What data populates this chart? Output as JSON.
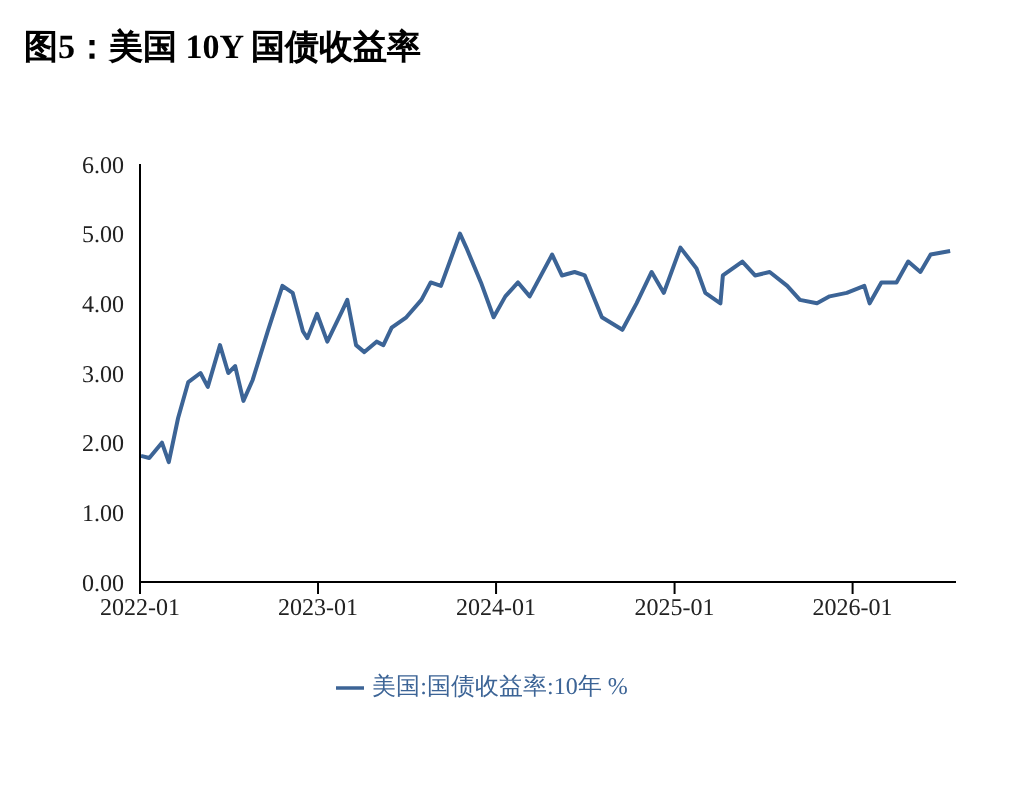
{
  "chart_data": {
    "type": "line",
    "title": "图5：美国 10Y 国债收益率",
    "x": [
      "2022-01-03",
      "2022-01-20",
      "2022-02-15",
      "2022-03-01",
      "2022-03-20",
      "2022-04-10",
      "2022-05-05",
      "2022-05-20",
      "2022-06-14",
      "2022-07-01",
      "2022-07-15",
      "2022-08-01",
      "2022-08-20",
      "2022-09-20",
      "2022-10-20",
      "2022-11-10",
      "2022-12-01",
      "2022-12-10",
      "2022-12-30",
      "2023-01-20",
      "2023-02-20",
      "2023-03-02",
      "2023-03-20",
      "2023-04-06",
      "2023-05-01",
      "2023-05-15",
      "2023-06-01",
      "2023-07-01",
      "2023-08-01",
      "2023-08-20",
      "2023-09-10",
      "2023-10-19",
      "2023-11-01",
      "2023-12-01",
      "2023-12-27",
      "2024-01-20",
      "2024-02-15",
      "2024-03-10",
      "2024-04-25",
      "2024-05-15",
      "2024-06-10",
      "2024-07-01",
      "2024-08-05",
      "2024-09-16",
      "2024-10-15",
      "2024-11-15",
      "2024-12-10",
      "2025-01-13",
      "2025-02-15",
      "2025-03-05",
      "2025-04-05",
      "2025-04-10",
      "2025-05-20",
      "2025-06-15",
      "2025-07-15",
      "2025-08-20",
      "2025-09-15",
      "2025-10-20",
      "2025-11-15",
      "2025-12-20",
      "2026-01-25",
      "2026-02-05",
      "2026-03-01",
      "2026-04-01",
      "2026-04-25",
      "2026-05-20",
      "2026-06-10",
      "2026-07-20"
    ],
    "series": [
      {
        "name": "美国:国债收益率:10年 %",
        "color": "#3c6496",
        "values": [
          1.81,
          1.78,
          2.0,
          1.72,
          2.35,
          2.87,
          3.0,
          2.8,
          3.4,
          3.0,
          3.1,
          2.6,
          2.9,
          3.6,
          4.25,
          4.15,
          3.6,
          3.5,
          3.85,
          3.45,
          3.9,
          4.05,
          3.4,
          3.3,
          3.45,
          3.4,
          3.65,
          3.8,
          4.05,
          4.3,
          4.25,
          5.0,
          4.8,
          4.3,
          3.8,
          4.1,
          4.3,
          4.1,
          4.7,
          4.4,
          4.45,
          4.4,
          3.8,
          3.62,
          4.0,
          4.45,
          4.15,
          4.8,
          4.5,
          4.15,
          4.0,
          4.4,
          4.6,
          4.4,
          4.45,
          4.25,
          4.05,
          4.0,
          4.1,
          4.15,
          4.25,
          4.0,
          4.3,
          4.3,
          4.6,
          4.45,
          4.7,
          4.75
        ]
      }
    ],
    "xlim": [
      "2022-01-01",
      "2026-08-01"
    ],
    "xticks": [
      "2022-01",
      "2023-01",
      "2024-01",
      "2025-01",
      "2026-01"
    ],
    "ylim": [
      0,
      6
    ],
    "yticks": [
      {
        "value": 0,
        "label": "0.00"
      },
      {
        "value": 1,
        "label": "1.00"
      },
      {
        "value": 2,
        "label": "2.00"
      },
      {
        "value": 3,
        "label": "3.00"
      },
      {
        "value": 4,
        "label": "4.00"
      },
      {
        "value": 5,
        "label": "5.00"
      },
      {
        "value": 6,
        "label": "6.00"
      }
    ],
    "grid": false,
    "legend": "bottom",
    "marker": "none",
    "line_style": "solid"
  }
}
